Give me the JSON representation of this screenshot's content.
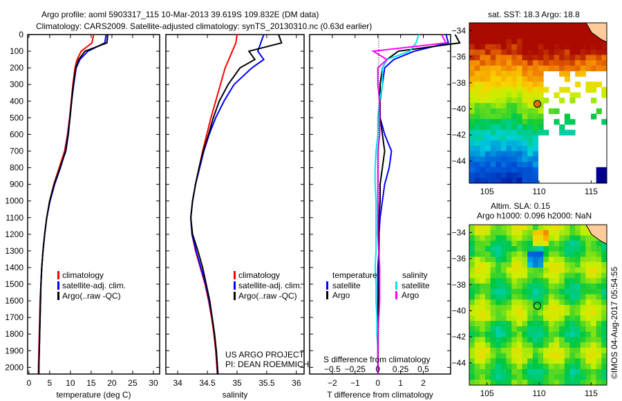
{
  "title_line1": "Argo profile: aoml 5903317_115 10-Mar-2013 39.619S 109.832E (DM data)",
  "title_line2": "Climatology: CARS2009. Satellite-adjusted climatology: synTS_20130310.nc (0.63d earlier)",
  "side_credit": "©IMOS 04-Aug-2017 05:54:55",
  "colors": {
    "climatology": "#ff0000",
    "satellite": "#0000ff",
    "argo": "#000000",
    "sal_satellite": "#00e5ee",
    "sal_argo": "#ff00ff"
  },
  "chart_data": [
    {
      "type": "line",
      "name": "temperature",
      "xlabel": "temperature (deg C)",
      "ylabel": "",
      "xlim": [
        -0.3,
        31.5
      ],
      "ylim": [
        2040,
        0
      ],
      "xticks": [
        0,
        5,
        10,
        15,
        20,
        25,
        30
      ],
      "yticks": [
        0,
        100,
        200,
        300,
        400,
        500,
        600,
        700,
        800,
        900,
        1000,
        1100,
        1200,
        1300,
        1400,
        1500,
        1600,
        1700,
        1800,
        1900,
        2000
      ],
      "depth": [
        0,
        50,
        100,
        150,
        200,
        300,
        400,
        500,
        600,
        700,
        800,
        900,
        1000,
        1100,
        1200,
        1300,
        1400,
        1500,
        1600,
        1700,
        1800,
        1900,
        2000,
        2040
      ],
      "series": [
        {
          "name": "climatology",
          "color": "#ff0000",
          "values": [
            15.6,
            15.2,
            12.6,
            11.6,
            11.1,
            10.6,
            10.2,
            9.8,
            9.3,
            8.6,
            7.3,
            6.0,
            5.0,
            4.3,
            3.8,
            3.4,
            3.1,
            2.9,
            2.7,
            2.6,
            2.5,
            2.4,
            2.3,
            2.3
          ]
        },
        {
          "name": "satellite-adj. clim.",
          "color": "#0000ff",
          "values": [
            18.6,
            18.3,
            14.2,
            12.3,
            11.4,
            10.8,
            10.3,
            9.9,
            9.4,
            8.8,
            7.6,
            6.2,
            5.1,
            4.3,
            3.8,
            3.4,
            3.1,
            2.9,
            2.8,
            2.7,
            2.6,
            2.5,
            2.4,
            2.4
          ]
        },
        {
          "name": "Argo(..raw -QC)",
          "color": "#000000",
          "values": [
            19.0,
            18.8,
            13.5,
            12.0,
            11.3,
            10.7,
            10.3,
            9.9,
            9.5,
            8.9,
            7.5,
            6.1,
            5.0,
            4.3,
            3.8,
            3.4,
            3.1,
            2.9,
            2.8,
            2.7,
            2.6,
            2.5,
            2.4,
            2.4
          ]
        }
      ],
      "legend": [
        "climatology",
        "satellite-adj. clim.",
        "Argo(..raw -QC)"
      ]
    },
    {
      "type": "line",
      "name": "salinity",
      "xlabel": "salinity",
      "xlim": [
        33.8,
        36.13
      ],
      "ylim": [
        2040,
        0
      ],
      "xticks": [
        34,
        34.5,
        35,
        35.5,
        36
      ],
      "depth": [
        0,
        50,
        100,
        150,
        200,
        300,
        400,
        500,
        600,
        700,
        800,
        900,
        1000,
        1100,
        1200,
        1300,
        1400,
        1500,
        1600,
        1700,
        1800,
        1900,
        2000,
        2040
      ],
      "series": [
        {
          "name": "climatology",
          "color": "#ff0000",
          "values": [
            35.0,
            34.98,
            34.92,
            34.86,
            34.8,
            34.72,
            34.64,
            34.56,
            34.49,
            34.42,
            34.36,
            34.3,
            34.25,
            34.22,
            34.24,
            34.3,
            34.38,
            34.46,
            34.52,
            34.57,
            34.61,
            34.64,
            34.66,
            34.67
          ]
        },
        {
          "name": "satellite-adj. clim.",
          "color": "#0000ff",
          "values": [
            35.45,
            35.4,
            35.35,
            35.45,
            35.25,
            34.95,
            34.78,
            34.64,
            34.53,
            34.44,
            34.37,
            34.3,
            34.25,
            34.22,
            34.24,
            34.31,
            34.39,
            34.47,
            34.53,
            34.58,
            34.62,
            34.65,
            34.67,
            34.68
          ]
        },
        {
          "name": "Argo(..raw -QC)",
          "color": "#000000",
          "values": [
            35.7,
            35.75,
            35.2,
            35.3,
            35.05,
            34.85,
            34.7,
            34.6,
            34.52,
            34.43,
            34.36,
            34.3,
            34.25,
            34.22,
            34.25,
            34.34,
            34.42,
            34.48,
            34.54,
            34.58,
            34.62,
            34.65,
            34.67,
            34.67
          ]
        }
      ],
      "legend": [
        "climatology",
        "satellite-adj. clim.",
        "Argo(..raw -QC)"
      ],
      "annotation": [
        "US ARGO PROJECT",
        "PI: DEAN ROEMMICH"
      ]
    },
    {
      "type": "line",
      "name": "difference",
      "xlabel": "T difference from climatology",
      "x2label": "S difference from climatology",
      "xlim": [
        -3,
        3.2
      ],
      "ylim": [
        2040,
        0
      ],
      "xticks": [
        -2,
        -1,
        0,
        1,
        2
      ],
      "x2ticks": [
        -0.5,
        -0.25,
        0,
        0.25,
        0.5
      ],
      "depth": [
        0,
        50,
        100,
        150,
        200,
        300,
        400,
        500,
        600,
        700,
        800,
        900,
        1000,
        1100,
        1200,
        1300,
        1400,
        1500,
        1600,
        1700,
        1800,
        1900,
        2000,
        2040
      ],
      "series": [
        {
          "name": "temperature satellite",
          "color": "#0000ff",
          "values": [
            3.0,
            3.1,
            1.6,
            0.7,
            0.3,
            0.2,
            0.1,
            0.1,
            0.3,
            0.6,
            0.5,
            0.3,
            0.2,
            0.1,
            0.05,
            0.05,
            0.0,
            0.0,
            0.0,
            0.0,
            0.0,
            0.0,
            0.0,
            0.0
          ]
        },
        {
          "name": "temperature Argo",
          "color": "#000000",
          "values": [
            3.4,
            3.6,
            0.9,
            0.4,
            0.2,
            0.1,
            0.1,
            0.1,
            0.2,
            0.3,
            0.2,
            0.1,
            0.1,
            0.05,
            0.05,
            0.05,
            0.05,
            0.05,
            0.02,
            0.02,
            0.0,
            0.0,
            0.0,
            0.0
          ]
        },
        {
          "name": "salinity satellite",
          "color": "#00e5ee",
          "values": [
            0.45,
            0.42,
            0.35,
            0.1,
            0.05,
            0.05,
            0.02,
            0.0,
            0.0,
            -0.02,
            -0.03,
            -0.03,
            -0.02,
            -0.02,
            -0.02,
            -0.02,
            -0.03,
            -0.02,
            -0.02,
            -0.01,
            -0.01,
            0.0,
            0.0,
            0.0
          ]
        },
        {
          "name": "salinity Argo",
          "color": "#ff00ff",
          "values": [
            0.7,
            0.75,
            -0.05,
            0.1,
            0.0,
            0.0,
            0.02,
            0.02,
            0.02,
            0.0,
            0.0,
            0.0,
            0.0,
            0.0,
            0.0,
            0.01,
            0.02,
            0.02,
            0.02,
            0.01,
            0.0,
            0.0,
            0.0,
            0.0
          ]
        }
      ],
      "legend": {
        "temperature": "temperature",
        "salinity": "salinity",
        "satellite": "satellite",
        "argo": "Argo"
      }
    },
    {
      "type": "heatmap",
      "name": "sst_map",
      "title": "sat. SST: 18.3 Argo: 18.8",
      "xticks": [
        105,
        110,
        115
      ],
      "yticks": [
        -34,
        -36,
        -38,
        -40,
        -42,
        -44
      ],
      "xlim": [
        103.3,
        116.5
      ],
      "ylim": [
        -45.7,
        -33.4
      ],
      "argo_position": [
        109.832,
        -39.619
      ]
    },
    {
      "type": "heatmap",
      "name": "sla_map",
      "title": "Altim. SLA: 0.15",
      "subtitle": "Argo h1000: 0.096 h2000: NaN",
      "xticks": [
        105,
        110,
        115
      ],
      "yticks": [
        -34,
        -36,
        -38,
        -40,
        -42,
        -44
      ],
      "xlim": [
        103.3,
        116.5
      ],
      "ylim": [
        -45.7,
        -33.4
      ],
      "argo_position": [
        109.832,
        -39.619
      ]
    }
  ]
}
